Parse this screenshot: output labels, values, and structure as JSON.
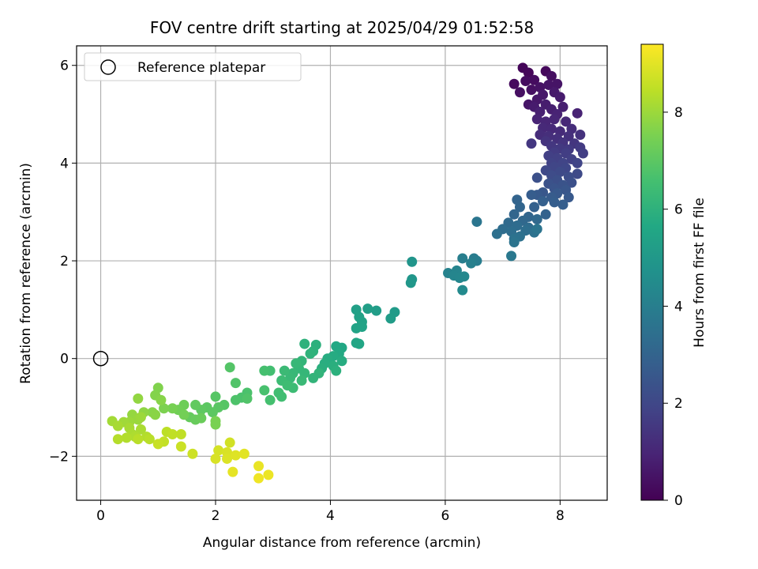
{
  "chart_data": {
    "type": "scatter",
    "title": "FOV centre drift starting at 2025/04/29 01:52:58",
    "xlabel": "Angular distance from reference (arcmin)",
    "ylabel": "Rotation from reference (arcmin)",
    "xlim": [
      -0.42,
      8.82
    ],
    "ylim": [
      -2.9,
      6.4
    ],
    "xticks": [
      0,
      2,
      4,
      6,
      8
    ],
    "yticks": [
      -2,
      0,
      2,
      4,
      6
    ],
    "xtick_labels": [
      "0",
      "2",
      "4",
      "6",
      "8"
    ],
    "ytick_labels": [
      "−2",
      "0",
      "2",
      "4",
      "6"
    ],
    "grid": true,
    "legend": {
      "placement": "top-left",
      "entries": [
        "Reference platepar"
      ]
    },
    "reference_point": {
      "name": "Reference platepar",
      "x": 0,
      "y": 0
    },
    "colorbar": {
      "label": "Hours from first FF file",
      "colormap": "viridis",
      "range": [
        0,
        9.4
      ],
      "ticks": [
        0,
        2,
        4,
        6,
        8
      ],
      "tick_labels": [
        "0",
        "2",
        "4",
        "6",
        "8"
      ]
    },
    "points": [
      {
        "x": 7.35,
        "y": 5.95,
        "c": 0.1
      },
      {
        "x": 7.45,
        "y": 5.85,
        "c": 0.15
      },
      {
        "x": 7.75,
        "y": 5.88,
        "c": 0.2
      },
      {
        "x": 7.2,
        "y": 5.62,
        "c": 0.25
      },
      {
        "x": 7.4,
        "y": 5.68,
        "c": 0.3
      },
      {
        "x": 7.55,
        "y": 5.7,
        "c": 0.3
      },
      {
        "x": 7.85,
        "y": 5.78,
        "c": 0.35
      },
      {
        "x": 7.3,
        "y": 5.45,
        "c": 0.4
      },
      {
        "x": 7.5,
        "y": 5.5,
        "c": 0.4
      },
      {
        "x": 7.65,
        "y": 5.55,
        "c": 0.45
      },
      {
        "x": 7.8,
        "y": 5.6,
        "c": 0.5
      },
      {
        "x": 7.95,
        "y": 5.62,
        "c": 0.5
      },
      {
        "x": 7.45,
        "y": 5.2,
        "c": 0.55
      },
      {
        "x": 7.6,
        "y": 5.3,
        "c": 0.6
      },
      {
        "x": 7.7,
        "y": 5.4,
        "c": 0.6
      },
      {
        "x": 7.9,
        "y": 5.45,
        "c": 0.65
      },
      {
        "x": 8.0,
        "y": 5.35,
        "c": 0.7
      },
      {
        "x": 7.55,
        "y": 5.15,
        "c": 0.7
      },
      {
        "x": 7.75,
        "y": 5.2,
        "c": 0.75
      },
      {
        "x": 7.85,
        "y": 5.1,
        "c": 0.8
      },
      {
        "x": 8.05,
        "y": 5.15,
        "c": 0.8
      },
      {
        "x": 7.65,
        "y": 5.05,
        "c": 0.85
      },
      {
        "x": 7.95,
        "y": 5.0,
        "c": 0.9
      },
      {
        "x": 8.3,
        "y": 5.02,
        "c": 0.9
      },
      {
        "x": 7.6,
        "y": 4.9,
        "c": 0.95
      },
      {
        "x": 7.75,
        "y": 4.85,
        "c": 1.0
      },
      {
        "x": 7.9,
        "y": 4.9,
        "c": 1.0
      },
      {
        "x": 8.1,
        "y": 4.85,
        "c": 1.05
      },
      {
        "x": 7.7,
        "y": 4.72,
        "c": 1.1
      },
      {
        "x": 7.85,
        "y": 4.7,
        "c": 1.1
      },
      {
        "x": 8.0,
        "y": 4.65,
        "c": 1.15
      },
      {
        "x": 8.2,
        "y": 4.7,
        "c": 1.2
      },
      {
        "x": 7.65,
        "y": 4.58,
        "c": 1.2
      },
      {
        "x": 7.8,
        "y": 4.55,
        "c": 1.25
      },
      {
        "x": 7.95,
        "y": 4.5,
        "c": 1.3
      },
      {
        "x": 8.15,
        "y": 4.55,
        "c": 1.3
      },
      {
        "x": 8.35,
        "y": 4.58,
        "c": 1.35
      },
      {
        "x": 7.75,
        "y": 4.45,
        "c": 1.4
      },
      {
        "x": 8.05,
        "y": 4.42,
        "c": 1.4
      },
      {
        "x": 8.25,
        "y": 4.4,
        "c": 1.45
      },
      {
        "x": 7.5,
        "y": 4.4,
        "c": 1.5
      },
      {
        "x": 7.85,
        "y": 4.35,
        "c": 1.5
      },
      {
        "x": 8.0,
        "y": 4.3,
        "c": 1.55
      },
      {
        "x": 8.15,
        "y": 4.28,
        "c": 1.6
      },
      {
        "x": 8.35,
        "y": 4.32,
        "c": 1.6
      },
      {
        "x": 7.9,
        "y": 4.22,
        "c": 1.65
      },
      {
        "x": 8.1,
        "y": 4.2,
        "c": 1.7
      },
      {
        "x": 8.4,
        "y": 4.2,
        "c": 1.7
      },
      {
        "x": 7.8,
        "y": 4.15,
        "c": 1.75
      },
      {
        "x": 7.95,
        "y": 4.1,
        "c": 1.8
      },
      {
        "x": 8.2,
        "y": 4.08,
        "c": 1.8
      },
      {
        "x": 7.85,
        "y": 4.0,
        "c": 1.85
      },
      {
        "x": 8.05,
        "y": 4.0,
        "c": 1.9
      },
      {
        "x": 8.3,
        "y": 4.0,
        "c": 1.9
      },
      {
        "x": 7.9,
        "y": 3.92,
        "c": 1.95
      },
      {
        "x": 8.1,
        "y": 3.9,
        "c": 2.0
      },
      {
        "x": 7.75,
        "y": 3.85,
        "c": 2.05
      },
      {
        "x": 8.0,
        "y": 3.82,
        "c": 2.1
      },
      {
        "x": 8.3,
        "y": 3.78,
        "c": 2.1
      },
      {
        "x": 7.85,
        "y": 3.75,
        "c": 2.15
      },
      {
        "x": 8.15,
        "y": 3.72,
        "c": 2.2
      },
      {
        "x": 7.95,
        "y": 3.65,
        "c": 2.25
      },
      {
        "x": 8.2,
        "y": 3.6,
        "c": 2.3
      },
      {
        "x": 7.6,
        "y": 3.7,
        "c": 2.3
      },
      {
        "x": 7.8,
        "y": 3.58,
        "c": 2.35
      },
      {
        "x": 8.05,
        "y": 3.55,
        "c": 2.4
      },
      {
        "x": 7.9,
        "y": 3.48,
        "c": 2.45
      },
      {
        "x": 8.1,
        "y": 3.45,
        "c": 2.5
      },
      {
        "x": 7.7,
        "y": 3.4,
        "c": 2.55
      },
      {
        "x": 7.95,
        "y": 3.38,
        "c": 2.6
      },
      {
        "x": 8.15,
        "y": 3.3,
        "c": 2.6
      },
      {
        "x": 7.6,
        "y": 3.35,
        "c": 2.65
      },
      {
        "x": 7.85,
        "y": 3.3,
        "c": 2.7
      },
      {
        "x": 7.5,
        "y": 3.35,
        "c": 2.75
      },
      {
        "x": 8.05,
        "y": 3.15,
        "c": 2.8
      },
      {
        "x": 7.9,
        "y": 3.2,
        "c": 2.8
      },
      {
        "x": 7.7,
        "y": 3.22,
        "c": 2.85
      },
      {
        "x": 7.55,
        "y": 3.1,
        "c": 2.9
      },
      {
        "x": 7.75,
        "y": 2.95,
        "c": 2.95
      },
      {
        "x": 7.25,
        "y": 3.25,
        "c": 3.0
      },
      {
        "x": 7.3,
        "y": 3.1,
        "c": 3.05
      },
      {
        "x": 7.2,
        "y": 2.95,
        "c": 3.1
      },
      {
        "x": 7.45,
        "y": 2.9,
        "c": 3.1
      },
      {
        "x": 7.35,
        "y": 2.82,
        "c": 3.15
      },
      {
        "x": 7.6,
        "y": 2.85,
        "c": 3.2
      },
      {
        "x": 7.1,
        "y": 2.78,
        "c": 3.25
      },
      {
        "x": 7.25,
        "y": 2.72,
        "c": 3.3
      },
      {
        "x": 7.45,
        "y": 2.68,
        "c": 3.3
      },
      {
        "x": 7.0,
        "y": 2.65,
        "c": 3.35
      },
      {
        "x": 7.15,
        "y": 2.6,
        "c": 3.4
      },
      {
        "x": 7.4,
        "y": 2.62,
        "c": 3.4
      },
      {
        "x": 6.9,
        "y": 2.55,
        "c": 3.45
      },
      {
        "x": 7.3,
        "y": 2.5,
        "c": 3.5
      },
      {
        "x": 7.55,
        "y": 2.58,
        "c": 3.5
      },
      {
        "x": 7.2,
        "y": 2.45,
        "c": 3.55
      },
      {
        "x": 7.6,
        "y": 2.65,
        "c": 3.6
      },
      {
        "x": 7.2,
        "y": 2.38,
        "c": 3.6
      },
      {
        "x": 6.55,
        "y": 2.8,
        "c": 3.65
      },
      {
        "x": 7.15,
        "y": 2.1,
        "c": 3.75
      },
      {
        "x": 6.5,
        "y": 2.05,
        "c": 3.9
      },
      {
        "x": 6.55,
        "y": 2.0,
        "c": 3.95
      },
      {
        "x": 6.3,
        "y": 2.05,
        "c": 4.0
      },
      {
        "x": 6.45,
        "y": 1.95,
        "c": 4.05
      },
      {
        "x": 6.05,
        "y": 1.75,
        "c": 4.15
      },
      {
        "x": 6.2,
        "y": 1.8,
        "c": 4.2
      },
      {
        "x": 6.15,
        "y": 1.7,
        "c": 4.25
      },
      {
        "x": 6.25,
        "y": 1.65,
        "c": 4.3
      },
      {
        "x": 6.33,
        "y": 1.68,
        "c": 4.35
      },
      {
        "x": 6.3,
        "y": 1.4,
        "c": 4.45
      },
      {
        "x": 5.42,
        "y": 1.98,
        "c": 4.85
      },
      {
        "x": 5.42,
        "y": 1.62,
        "c": 4.9
      },
      {
        "x": 5.4,
        "y": 1.55,
        "c": 4.95
      },
      {
        "x": 5.12,
        "y": 0.95,
        "c": 5.1
      },
      {
        "x": 5.05,
        "y": 0.82,
        "c": 5.15
      },
      {
        "x": 4.8,
        "y": 0.98,
        "c": 5.2
      },
      {
        "x": 4.65,
        "y": 1.02,
        "c": 5.25
      },
      {
        "x": 4.45,
        "y": 1.0,
        "c": 5.3
      },
      {
        "x": 4.5,
        "y": 0.85,
        "c": 5.35
      },
      {
        "x": 4.55,
        "y": 0.75,
        "c": 5.4
      },
      {
        "x": 4.45,
        "y": 0.62,
        "c": 5.45
      },
      {
        "x": 4.55,
        "y": 0.65,
        "c": 5.45
      },
      {
        "x": 4.45,
        "y": 0.32,
        "c": 5.5
      },
      {
        "x": 4.5,
        "y": 0.3,
        "c": 5.55
      },
      {
        "x": 4.2,
        "y": 0.22,
        "c": 5.6
      },
      {
        "x": 4.1,
        "y": 0.25,
        "c": 5.65
      },
      {
        "x": 4.15,
        "y": 0.1,
        "c": 5.7
      },
      {
        "x": 4.05,
        "y": 0.05,
        "c": 5.75
      },
      {
        "x": 3.95,
        "y": 0.0,
        "c": 5.8
      },
      {
        "x": 4.2,
        "y": -0.05,
        "c": 5.8
      },
      {
        "x": 3.9,
        "y": -0.1,
        "c": 5.85
      },
      {
        "x": 4.05,
        "y": -0.15,
        "c": 5.9
      },
      {
        "x": 3.85,
        "y": -0.2,
        "c": 5.9
      },
      {
        "x": 4.1,
        "y": -0.25,
        "c": 5.95
      },
      {
        "x": 3.75,
        "y": 0.28,
        "c": 5.95
      },
      {
        "x": 3.7,
        "y": 0.15,
        "c": 6.0
      },
      {
        "x": 3.55,
        "y": 0.3,
        "c": 6.0
      },
      {
        "x": 3.65,
        "y": 0.1,
        "c": 6.05
      },
      {
        "x": 3.8,
        "y": -0.3,
        "c": 6.1
      },
      {
        "x": 3.7,
        "y": -0.4,
        "c": 6.1
      },
      {
        "x": 3.5,
        "y": -0.05,
        "c": 6.15
      },
      {
        "x": 3.45,
        "y": -0.2,
        "c": 6.2
      },
      {
        "x": 3.55,
        "y": -0.3,
        "c": 6.2
      },
      {
        "x": 3.4,
        "y": -0.1,
        "c": 6.25
      },
      {
        "x": 3.35,
        "y": -0.3,
        "c": 6.25
      },
      {
        "x": 3.5,
        "y": -0.45,
        "c": 6.3
      },
      {
        "x": 3.3,
        "y": -0.4,
        "c": 6.3
      },
      {
        "x": 3.2,
        "y": -0.25,
        "c": 6.35
      },
      {
        "x": 3.15,
        "y": -0.45,
        "c": 6.4
      },
      {
        "x": 3.35,
        "y": -0.6,
        "c": 6.4
      },
      {
        "x": 3.25,
        "y": -0.55,
        "c": 6.45
      },
      {
        "x": 3.1,
        "y": -0.7,
        "c": 6.5
      },
      {
        "x": 3.15,
        "y": -0.78,
        "c": 6.5
      },
      {
        "x": 2.95,
        "y": -0.25,
        "c": 6.55
      },
      {
        "x": 2.85,
        "y": -0.25,
        "c": 6.6
      },
      {
        "x": 2.95,
        "y": -0.85,
        "c": 6.6
      },
      {
        "x": 2.85,
        "y": -0.65,
        "c": 6.65
      },
      {
        "x": 2.55,
        "y": -0.7,
        "c": 6.7
      },
      {
        "x": 2.45,
        "y": -0.8,
        "c": 6.7
      },
      {
        "x": 2.35,
        "y": -0.85,
        "c": 6.75
      },
      {
        "x": 2.55,
        "y": -0.82,
        "c": 6.8
      },
      {
        "x": 2.35,
        "y": -0.5,
        "c": 6.8
      },
      {
        "x": 2.25,
        "y": -0.18,
        "c": 6.85
      },
      {
        "x": 2.15,
        "y": -0.95,
        "c": 6.9
      },
      {
        "x": 2.0,
        "y": -0.78,
        "c": 6.9
      },
      {
        "x": 2.05,
        "y": -1.0,
        "c": 6.95
      },
      {
        "x": 1.95,
        "y": -1.1,
        "c": 7.0
      },
      {
        "x": 1.85,
        "y": -1.0,
        "c": 7.0
      },
      {
        "x": 1.75,
        "y": -1.05,
        "c": 7.05
      },
      {
        "x": 1.65,
        "y": -0.95,
        "c": 7.1
      },
      {
        "x": 1.55,
        "y": -1.2,
        "c": 7.15
      },
      {
        "x": 1.65,
        "y": -1.25,
        "c": 7.2
      },
      {
        "x": 1.75,
        "y": -1.22,
        "c": 7.25
      },
      {
        "x": 1.45,
        "y": -0.95,
        "c": 7.3
      },
      {
        "x": 1.35,
        "y": -1.05,
        "c": 7.35
      },
      {
        "x": 1.45,
        "y": -1.15,
        "c": 7.4
      },
      {
        "x": 1.25,
        "y": -1.02,
        "c": 7.45
      },
      {
        "x": 2.0,
        "y": -1.28,
        "c": 7.5
      },
      {
        "x": 2.0,
        "y": -1.35,
        "c": 7.5
      },
      {
        "x": 1.1,
        "y": -1.02,
        "c": 7.55
      },
      {
        "x": 1.0,
        "y": -0.6,
        "c": 7.6
      },
      {
        "x": 0.95,
        "y": -0.75,
        "c": 7.65
      },
      {
        "x": 1.05,
        "y": -0.85,
        "c": 7.7
      },
      {
        "x": 0.9,
        "y": -1.1,
        "c": 7.7
      },
      {
        "x": 0.95,
        "y": -1.15,
        "c": 7.75
      },
      {
        "x": 0.75,
        "y": -1.1,
        "c": 7.8
      },
      {
        "x": 0.65,
        "y": -0.82,
        "c": 7.85
      },
      {
        "x": 0.55,
        "y": -1.15,
        "c": 7.9
      },
      {
        "x": 0.65,
        "y": -1.25,
        "c": 7.95
      },
      {
        "x": 0.5,
        "y": -1.3,
        "c": 8.0
      },
      {
        "x": 0.7,
        "y": -1.2,
        "c": 8.0
      },
      {
        "x": 0.4,
        "y": -1.3,
        "c": 8.05
      },
      {
        "x": 0.2,
        "y": -1.28,
        "c": 8.1
      },
      {
        "x": 0.3,
        "y": -1.38,
        "c": 8.15
      },
      {
        "x": 0.5,
        "y": -1.42,
        "c": 8.15
      },
      {
        "x": 0.7,
        "y": -1.45,
        "c": 8.2
      },
      {
        "x": 0.55,
        "y": -1.55,
        "c": 8.2
      },
      {
        "x": 0.6,
        "y": -1.6,
        "c": 8.25
      },
      {
        "x": 0.8,
        "y": -1.6,
        "c": 8.3
      },
      {
        "x": 0.45,
        "y": -1.62,
        "c": 8.3
      },
      {
        "x": 0.3,
        "y": -1.65,
        "c": 8.35
      },
      {
        "x": 0.65,
        "y": -1.65,
        "c": 8.4
      },
      {
        "x": 0.85,
        "y": -1.65,
        "c": 8.4
      },
      {
        "x": 1.15,
        "y": -1.5,
        "c": 8.45
      },
      {
        "x": 1.25,
        "y": -1.55,
        "c": 8.5
      },
      {
        "x": 1.4,
        "y": -1.55,
        "c": 8.5
      },
      {
        "x": 1.1,
        "y": -1.7,
        "c": 8.55
      },
      {
        "x": 1.0,
        "y": -1.75,
        "c": 8.6
      },
      {
        "x": 1.4,
        "y": -1.8,
        "c": 8.65
      },
      {
        "x": 1.6,
        "y": -1.95,
        "c": 8.7
      },
      {
        "x": 2.25,
        "y": -1.72,
        "c": 8.75
      },
      {
        "x": 2.05,
        "y": -1.88,
        "c": 8.8
      },
      {
        "x": 2.2,
        "y": -1.92,
        "c": 8.85
      },
      {
        "x": 2.0,
        "y": -2.05,
        "c": 8.85
      },
      {
        "x": 2.2,
        "y": -2.05,
        "c": 8.9
      },
      {
        "x": 2.35,
        "y": -1.98,
        "c": 8.95
      },
      {
        "x": 2.5,
        "y": -1.95,
        "c": 9.0
      },
      {
        "x": 2.3,
        "y": -2.32,
        "c": 9.05
      },
      {
        "x": 2.75,
        "y": -2.2,
        "c": 9.1
      },
      {
        "x": 2.92,
        "y": -2.38,
        "c": 9.15
      },
      {
        "x": 2.75,
        "y": -2.45,
        "c": 9.2
      }
    ]
  }
}
